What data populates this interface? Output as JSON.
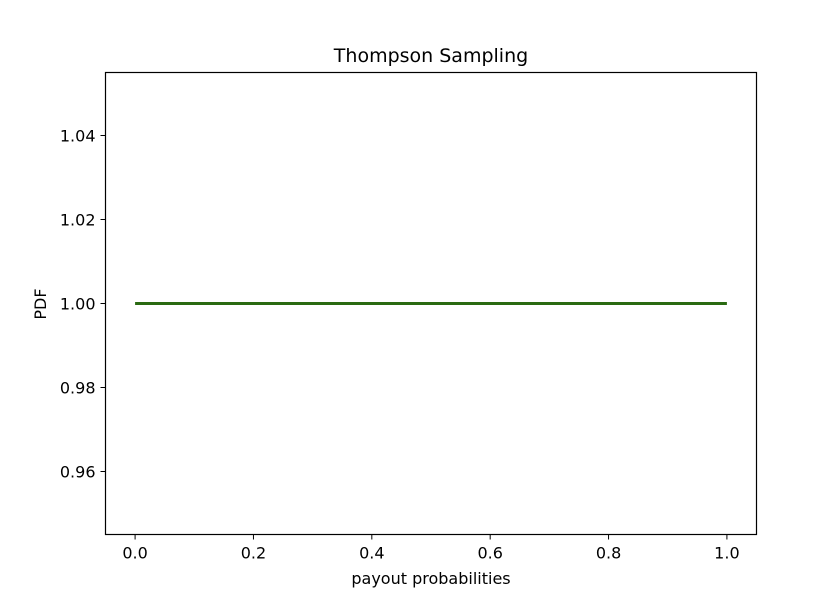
{
  "chart_data": {
    "type": "line",
    "title": "Thompson Sampling",
    "xlabel": "payout probabilities",
    "ylabel": "PDF",
    "xlim": [
      -0.05,
      1.05
    ],
    "ylim": [
      0.945,
      1.055
    ],
    "x_ticks": [
      0.0,
      0.2,
      0.4,
      0.6,
      0.8,
      1.0
    ],
    "x_tick_labels": [
      "0.0",
      "0.2",
      "0.4",
      "0.6",
      "0.8",
      "1.0"
    ],
    "y_ticks": [
      0.96,
      0.98,
      1.0,
      1.02,
      1.04
    ],
    "y_tick_labels": [
      "0.96",
      "0.98",
      "1.00",
      "1.02",
      "1.04"
    ],
    "grid": false,
    "legend": "none",
    "series": [
      {
        "x": [
          0.0,
          1.0
        ],
        "y": [
          1.0,
          1.0
        ],
        "color": "#2a6a12"
      }
    ]
  }
}
